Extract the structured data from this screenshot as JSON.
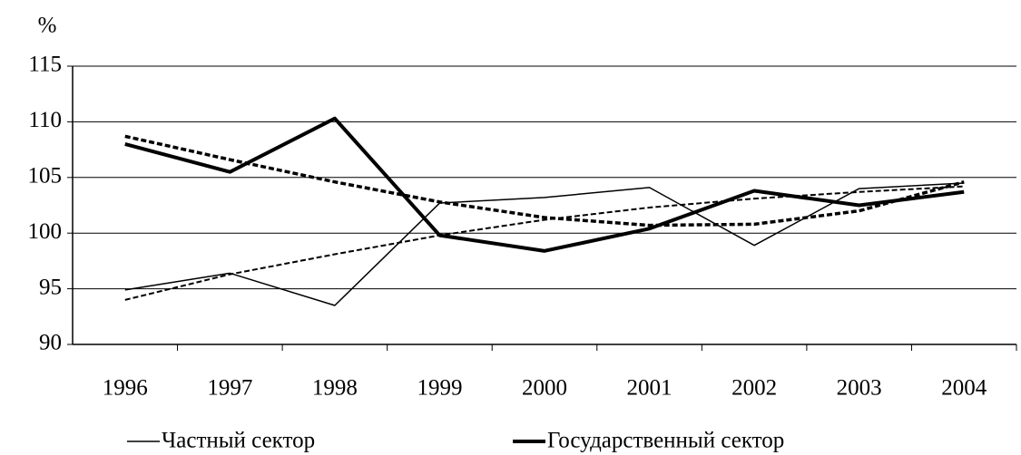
{
  "chart_data": {
    "type": "line",
    "y_label": "%",
    "categories": [
      "1996",
      "1997",
      "1998",
      "1999",
      "2000",
      "2001",
      "2002",
      "2003",
      "2004"
    ],
    "series": [
      {
        "name": "Частный сектор",
        "color": "#000000",
        "width": 1.5,
        "dashed": false,
        "values": [
          94.9,
          96.4,
          93.5,
          102.7,
          103.2,
          104.1,
          98.9,
          104.0,
          104.5
        ]
      },
      {
        "name": "Государственный сектор",
        "color": "#000000",
        "width": 4,
        "dashed": false,
        "values": [
          108.0,
          105.5,
          110.3,
          99.8,
          98.4,
          100.4,
          103.8,
          102.5,
          103.7
        ]
      },
      {
        "color": "#000000",
        "width": 2,
        "dashed": true,
        "values": [
          94.0,
          96.3,
          98.1,
          99.8,
          101.2,
          102.3,
          103.1,
          103.7,
          104.2
        ]
      },
      {
        "color": "#000000",
        "width": 3.5,
        "dashed": true,
        "values": [
          108.7,
          106.6,
          104.6,
          102.8,
          101.4,
          100.7,
          100.8,
          102.0,
          104.6
        ]
      }
    ],
    "ylim": [
      90,
      115
    ],
    "yticks": [
      90,
      95,
      100,
      105,
      110,
      115
    ],
    "grid": true
  }
}
